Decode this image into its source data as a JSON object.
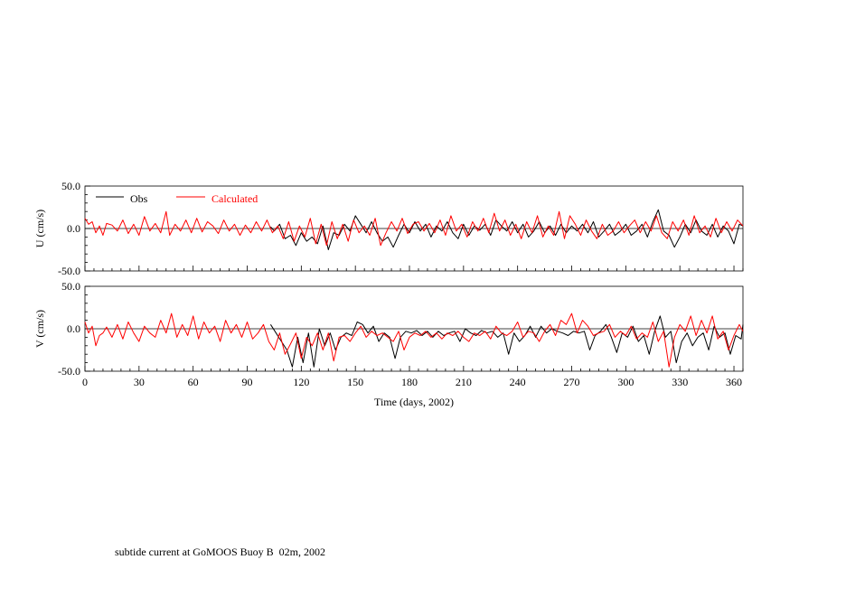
{
  "caption": "subtide current at GoMOOS Buoy B  02m, 2002",
  "colors": {
    "obs": "#000000",
    "calculated": "#ff0000",
    "axis": "#000000"
  },
  "chart_data": [
    {
      "type": "line",
      "ylabel": "U (cm/s)",
      "xlim": [
        0,
        365
      ],
      "ylim": [
        -50,
        50
      ],
      "yticks": [
        "50.0",
        "0.0",
        "-50.0"
      ],
      "zero_line": true,
      "legend": {
        "placement": "top-left",
        "entries": [
          "Obs",
          "Calculated"
        ]
      },
      "series": [
        {
          "name": "Obs",
          "x": [
            103,
            105,
            108,
            111,
            114,
            117,
            120,
            123,
            126,
            129,
            132,
            135,
            138,
            141,
            144,
            147,
            150,
            153,
            156,
            159,
            162,
            165,
            168,
            171,
            174,
            177,
            180,
            183,
            186,
            189,
            192,
            195,
            198,
            201,
            204,
            207,
            210,
            213,
            216,
            219,
            222,
            225,
            228,
            231,
            234,
            237,
            240,
            243,
            246,
            249,
            252,
            255,
            258,
            261,
            264,
            267,
            270,
            273,
            276,
            279,
            282,
            285,
            288,
            291,
            294,
            297,
            300,
            303,
            306,
            309,
            312,
            315,
            318,
            321,
            324,
            327,
            330,
            333,
            336,
            339,
            342,
            345,
            348,
            351,
            354,
            357,
            360,
            363,
            365
          ],
          "y": [
            2,
            -3,
            5,
            -12,
            -8,
            -20,
            -5,
            -15,
            -10,
            -18,
            3,
            -25,
            -5,
            -8,
            5,
            -3,
            15,
            5,
            -5,
            8,
            -5,
            -15,
            -10,
            -22,
            -8,
            5,
            -5,
            8,
            -3,
            5,
            -10,
            3,
            -3,
            8,
            -5,
            -12,
            5,
            -8,
            3,
            -2,
            5,
            -8,
            10,
            3,
            -3,
            8,
            -5,
            5,
            -10,
            -3,
            8,
            -5,
            3,
            -8,
            5,
            -5,
            3,
            -3,
            5,
            -5,
            8,
            -10,
            -3,
            5,
            -8,
            -3,
            5,
            -8,
            -3,
            5,
            -10,
            8,
            22,
            -3,
            -8,
            -22,
            -10,
            5,
            -5,
            10,
            -3,
            -8,
            5,
            -10,
            3,
            -3,
            -18,
            5,
            3
          ]
        },
        {
          "name": "Calculated",
          "x": [
            0,
            2,
            4,
            6,
            8,
            10,
            12,
            15,
            18,
            21,
            24,
            27,
            30,
            33,
            36,
            39,
            42,
            45,
            47,
            50,
            53,
            56,
            59,
            62,
            65,
            68,
            71,
            74,
            77,
            80,
            83,
            86,
            89,
            92,
            95,
            98,
            101,
            104,
            107,
            110,
            113,
            116,
            119,
            122,
            125,
            128,
            131,
            134,
            137,
            140,
            143,
            146,
            149,
            152,
            155,
            158,
            161,
            164,
            167,
            170,
            173,
            176,
            179,
            182,
            185,
            188,
            191,
            194,
            197,
            200,
            203,
            206,
            209,
            212,
            215,
            218,
            221,
            224,
            227,
            230,
            233,
            236,
            239,
            242,
            245,
            248,
            251,
            254,
            257,
            260,
            263,
            266,
            269,
            272,
            275,
            278,
            281,
            284,
            287,
            290,
            293,
            296,
            299,
            302,
            305,
            308,
            311,
            314,
            317,
            320,
            323,
            326,
            329,
            332,
            335,
            338,
            341,
            344,
            347,
            350,
            353,
            356,
            359,
            362,
            365
          ],
          "y": [
            12,
            5,
            8,
            -5,
            3,
            -8,
            6,
            4,
            -3,
            10,
            -6,
            5,
            -8,
            14,
            -3,
            6,
            -5,
            20,
            -8,
            5,
            -3,
            10,
            -5,
            12,
            -4,
            8,
            3,
            -6,
            10,
            -3,
            5,
            -8,
            4,
            -5,
            8,
            -3,
            10,
            -5,
            3,
            -12,
            8,
            -15,
            3,
            -10,
            12,
            -18,
            5,
            -20,
            8,
            -12,
            5,
            -15,
            10,
            -5,
            3,
            -8,
            12,
            -20,
            -5,
            8,
            -3,
            12,
            -6,
            5,
            8,
            -3,
            6,
            -5,
            10,
            -8,
            15,
            -3,
            5,
            -10,
            8,
            -3,
            12,
            -5,
            18,
            -3,
            10,
            -8,
            5,
            -12,
            8,
            -5,
            15,
            -10,
            3,
            -8,
            20,
            -12,
            15,
            5,
            -8,
            10,
            -3,
            -12,
            5,
            -8,
            -3,
            8,
            -5,
            3,
            10,
            -5,
            8,
            -3,
            15,
            -5,
            -12,
            8,
            -3,
            10,
            -8,
            15,
            -5,
            3,
            -10,
            12,
            -5,
            8,
            -3,
            10,
            3
          ]
        }
      ]
    },
    {
      "type": "line",
      "ylabel": "V (cm/s)",
      "xlabel": "Time (days, 2002)",
      "xlim": [
        0,
        365
      ],
      "ylim": [
        -50,
        50
      ],
      "xticks": [
        "0",
        "30",
        "60",
        "90",
        "120",
        "150",
        "180",
        "210",
        "240",
        "270",
        "300",
        "330",
        "360"
      ],
      "yticks": [
        "50.0",
        "0.0",
        "-50.0"
      ],
      "zero_line": true,
      "series": [
        {
          "name": "Obs",
          "x": [
            103,
            106,
            109,
            112,
            115,
            118,
            121,
            124,
            127,
            130,
            133,
            136,
            139,
            142,
            145,
            148,
            151,
            154,
            157,
            160,
            163,
            166,
            169,
            172,
            175,
            178,
            181,
            184,
            187,
            190,
            193,
            196,
            199,
            202,
            205,
            208,
            211,
            214,
            217,
            220,
            223,
            226,
            229,
            232,
            235,
            238,
            241,
            244,
            247,
            250,
            253,
            256,
            259,
            262,
            265,
            268,
            271,
            274,
            277,
            280,
            283,
            286,
            289,
            292,
            295,
            298,
            301,
            304,
            307,
            310,
            313,
            316,
            319,
            322,
            325,
            328,
            331,
            334,
            337,
            340,
            343,
            346,
            349,
            352,
            355,
            358,
            361,
            364,
            365
          ],
          "y": [
            5,
            -5,
            -15,
            -25,
            -45,
            -10,
            -40,
            -5,
            -45,
            0,
            -20,
            -5,
            -25,
            -10,
            -5,
            -8,
            8,
            5,
            -5,
            3,
            -15,
            -5,
            -10,
            -35,
            -10,
            -3,
            -5,
            -2,
            -8,
            -3,
            -10,
            -3,
            -8,
            -5,
            -3,
            -15,
            0,
            -5,
            -8,
            -2,
            -5,
            -3,
            -10,
            -5,
            -30,
            -5,
            -15,
            -8,
            3,
            -10,
            3,
            -5,
            0,
            -3,
            -5,
            -8,
            -3,
            -5,
            -3,
            -25,
            -8,
            -3,
            5,
            -10,
            -28,
            -5,
            -10,
            3,
            -15,
            -8,
            -30,
            -3,
            15,
            -10,
            -3,
            -40,
            -15,
            -5,
            -20,
            -10,
            -5,
            -25,
            3,
            -10,
            -5,
            -30,
            -8,
            -12,
            5
          ]
        },
        {
          "name": "Calculated",
          "x": [
            0,
            2,
            4,
            6,
            8,
            10,
            12,
            15,
            18,
            21,
            24,
            27,
            30,
            33,
            36,
            39,
            42,
            45,
            48,
            51,
            54,
            57,
            60,
            63,
            66,
            69,
            72,
            75,
            78,
            81,
            84,
            87,
            90,
            93,
            96,
            99,
            102,
            105,
            108,
            111,
            114,
            117,
            120,
            123,
            126,
            129,
            132,
            135,
            138,
            141,
            144,
            147,
            150,
            153,
            156,
            159,
            162,
            165,
            168,
            171,
            174,
            177,
            180,
            183,
            186,
            189,
            192,
            195,
            198,
            201,
            204,
            207,
            210,
            213,
            216,
            219,
            222,
            225,
            228,
            231,
            234,
            237,
            240,
            243,
            246,
            249,
            252,
            255,
            258,
            261,
            264,
            267,
            270,
            273,
            276,
            279,
            282,
            285,
            288,
            291,
            294,
            297,
            300,
            303,
            306,
            309,
            312,
            315,
            318,
            321,
            324,
            327,
            330,
            333,
            336,
            339,
            342,
            345,
            348,
            351,
            354,
            357,
            360,
            363,
            365
          ],
          "y": [
            8,
            -5,
            3,
            -20,
            -8,
            -5,
            2,
            -10,
            5,
            -12,
            8,
            -5,
            -15,
            3,
            -5,
            -10,
            10,
            -5,
            18,
            -10,
            5,
            -8,
            15,
            -12,
            8,
            -5,
            3,
            -15,
            10,
            -5,
            5,
            -10,
            8,
            -12,
            -5,
            5,
            -15,
            -25,
            -5,
            -30,
            -18,
            -5,
            -35,
            -10,
            -20,
            -5,
            -25,
            -5,
            -38,
            -10,
            -8,
            -15,
            -5,
            3,
            -10,
            -3,
            -8,
            -5,
            -10,
            -15,
            -3,
            -25,
            -10,
            -5,
            -8,
            -3,
            -10,
            -5,
            -12,
            -5,
            -8,
            -3,
            -10,
            -15,
            -5,
            -8,
            -3,
            -12,
            3,
            -5,
            -8,
            -3,
            8,
            -10,
            -3,
            -5,
            -15,
            -3,
            5,
            -8,
            10,
            5,
            18,
            -5,
            10,
            3,
            -8,
            -5,
            -3,
            5,
            -10,
            -3,
            -8,
            3,
            -12,
            -5,
            -10,
            8,
            -15,
            -3,
            -45,
            -10,
            5,
            -3,
            15,
            -8,
            10,
            -5,
            15,
            -12,
            -3,
            -25,
            -8,
            5,
            -3
          ]
        }
      ]
    }
  ]
}
